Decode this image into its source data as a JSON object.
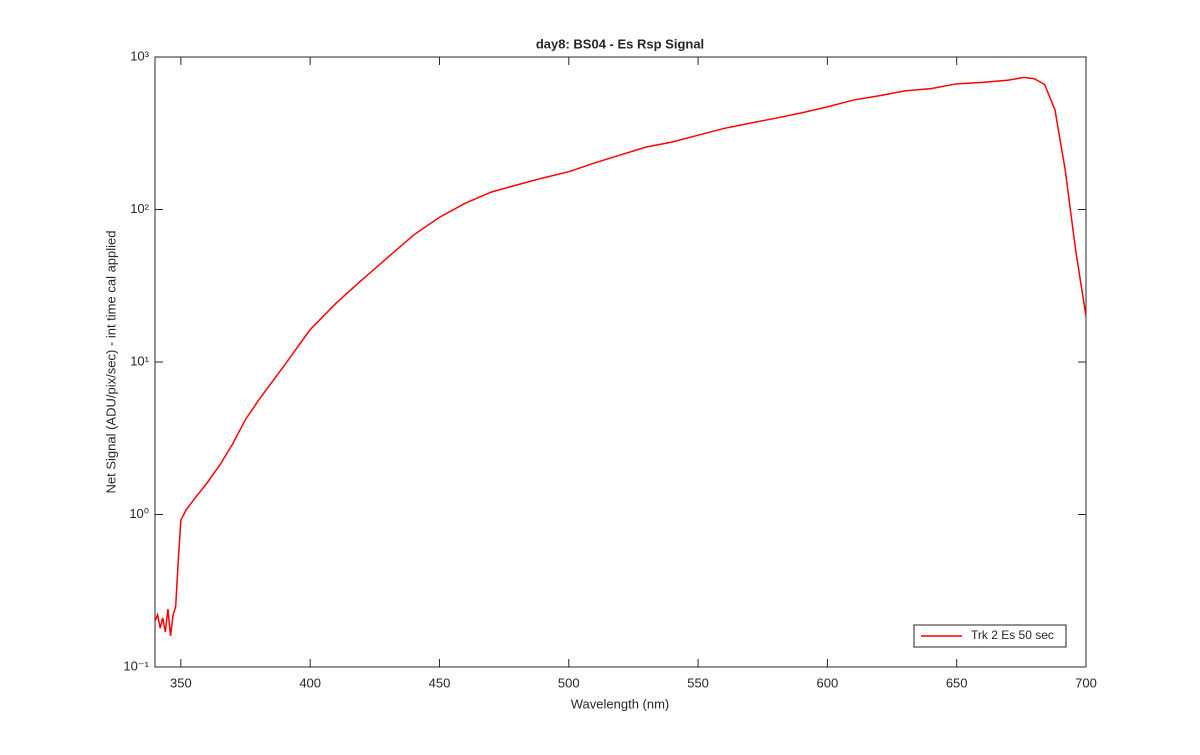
{
  "chart_data": {
    "type": "line",
    "title": "day8: BS04 - Es Rsp Signal",
    "x_label": "Wavelength (nm)",
    "y_label": "Net Signal (ADU/pix/sec) - int time cal applied",
    "y_scale": "log",
    "legend_position": "lower right",
    "xlim": [
      340,
      700
    ],
    "xticks": [
      350,
      400,
      450,
      500,
      550,
      600,
      650,
      700
    ],
    "ylim": [
      0.1,
      1000
    ],
    "yticks": [
      {
        "value": 0.1,
        "label": "10⁻¹"
      },
      {
        "value": 1,
        "label": "10⁰"
      },
      {
        "value": 10,
        "label": "10¹"
      },
      {
        "value": 100,
        "label": "10²"
      },
      {
        "value": 1000,
        "label": "10³"
      }
    ],
    "x": [
      340,
      341,
      342,
      343,
      344,
      345,
      346,
      347,
      348,
      349,
      350,
      352,
      355,
      360,
      365,
      370,
      375,
      380,
      390,
      400,
      410,
      420,
      430,
      440,
      450,
      460,
      470,
      480,
      490,
      500,
      510,
      520,
      530,
      540,
      550,
      560,
      570,
      580,
      590,
      600,
      610,
      620,
      630,
      640,
      650,
      660,
      670,
      676,
      680,
      684,
      688,
      692,
      696,
      700
    ],
    "series": [
      {
        "name": "Trk 2 Es 50 sec",
        "color": "#ff0000",
        "values": [
          0.2,
          0.22,
          0.18,
          0.21,
          0.17,
          0.24,
          0.16,
          0.22,
          0.25,
          0.5,
          0.92,
          1.07,
          1.25,
          1.6,
          2.1,
          2.9,
          4.2,
          5.6,
          9.5,
          16.3,
          24.3,
          34.5,
          48.5,
          68,
          89,
          110,
          130,
          145,
          161,
          177,
          202,
          228,
          257,
          277,
          307,
          340,
          368,
          397,
          430,
          471,
          522,
          557,
          600,
          620,
          667,
          682,
          705,
          735,
          720,
          660,
          450,
          180,
          54,
          20
        ]
      }
    ]
  }
}
